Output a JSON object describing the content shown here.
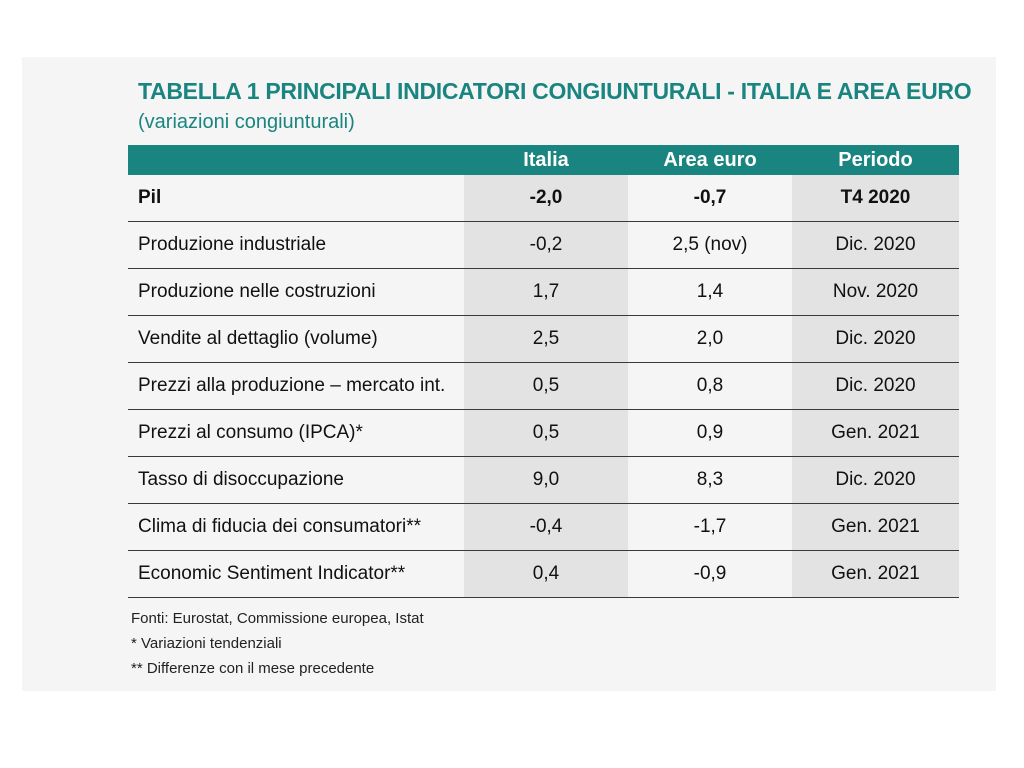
{
  "title": "TABELLA 1  PRINCIPALI INDICATORI CONGIUNTURALI - ITALIA E AREA EURO",
  "subtitle": "(variazioni congiunturali)",
  "table": {
    "headers": [
      "",
      "Italia",
      "Area euro",
      "Periodo"
    ],
    "rows": [
      [
        "Pil",
        "-2,0",
        "-0,7",
        "T4 2020"
      ],
      [
        "Produzione industriale",
        "-0,2",
        "2,5 (nov)",
        "Dic. 2020"
      ],
      [
        "Produzione nelle costruzioni",
        "1,7",
        "1,4",
        "Nov. 2020"
      ],
      [
        "Vendite al dettaglio (volume)",
        "2,5",
        "2,0",
        "Dic. 2020"
      ],
      [
        "Prezzi alla produzione – mercato int.",
        "0,5",
        "0,8",
        "Dic. 2020"
      ],
      [
        "Prezzi al consumo (IPCA)*",
        "0,5",
        "0,9",
        "Gen. 2021"
      ],
      [
        "Tasso di disoccupazione",
        "9,0",
        "8,3",
        "Dic. 2020"
      ],
      [
        "Clima di fiducia dei consumatori**",
        "-0,4",
        "-1,7",
        "Gen. 2021"
      ],
      [
        "Economic Sentiment Indicator**",
        "0,4",
        "-0,9",
        "Gen. 2021"
      ]
    ]
  },
  "notes": [
    "Fonti: Eurostat, Commissione europea, Istat",
    "* Variazioni tendenziali",
    "** Differenze con il mese precedente"
  ],
  "colors": {
    "header_bg": "#1a8580",
    "title_text": "#1a8580",
    "shaded_column": "#e3e3e3",
    "panel_bg": "#f5f5f5"
  }
}
